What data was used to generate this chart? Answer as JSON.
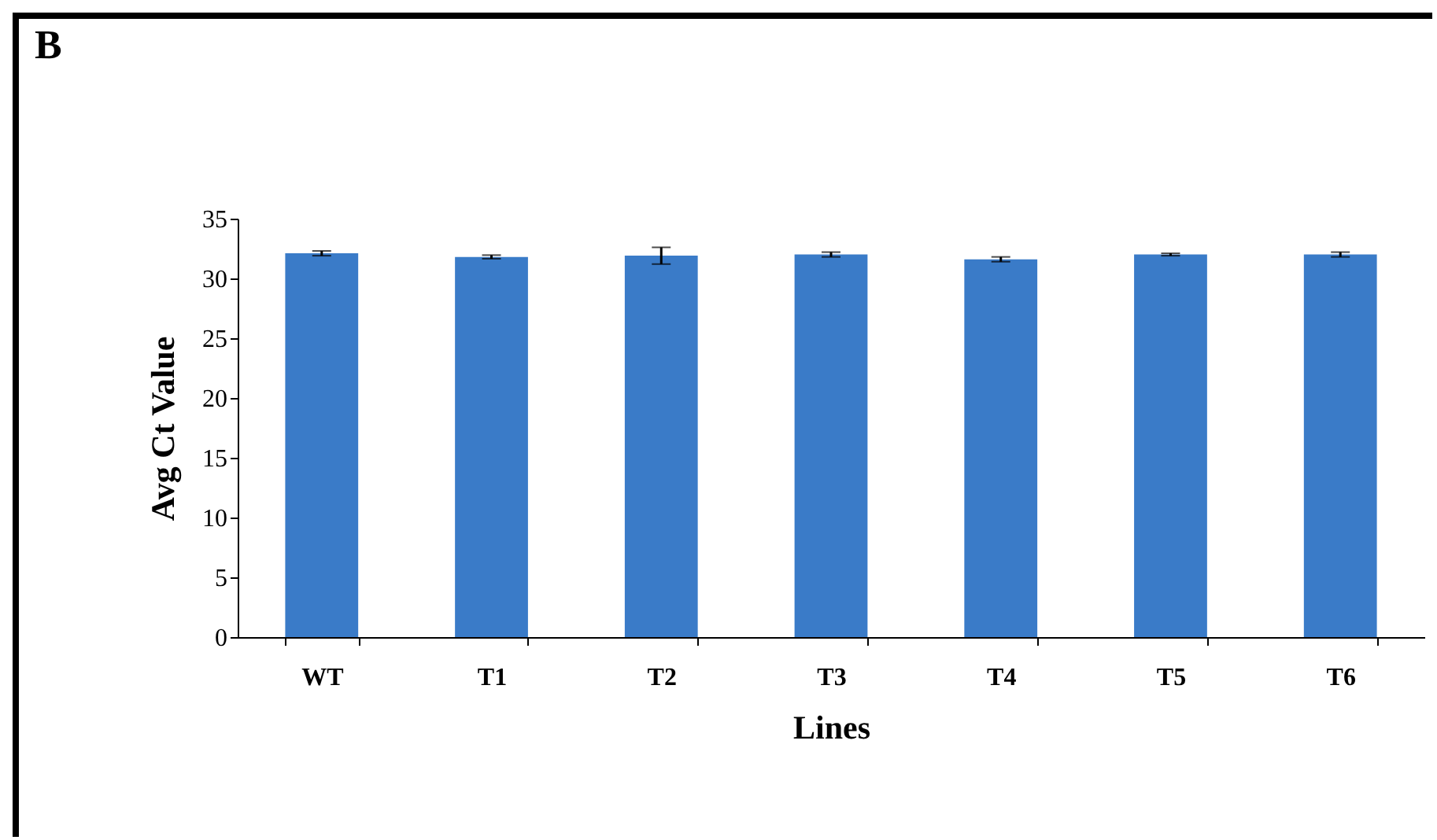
{
  "chart_data": {
    "type": "bar",
    "xlabel": "Lines",
    "ylabel": "Avg Ct Value",
    "annotations": [
      "B"
    ],
    "categories": [
      "WT",
      "T1",
      "T2",
      "T3",
      "T4",
      "T5",
      "T6"
    ],
    "values": [
      32.1,
      31.8,
      31.9,
      32.0,
      31.6,
      32.0,
      32.0
    ],
    "errors": [
      0.2,
      0.15,
      0.7,
      0.2,
      0.2,
      0.1,
      0.2
    ],
    "color": "#3a7bc8",
    "ylim": [
      0,
      35
    ],
    "yticks": [
      0,
      5,
      10,
      15,
      20,
      25,
      30,
      35
    ],
    "grid": false
  }
}
